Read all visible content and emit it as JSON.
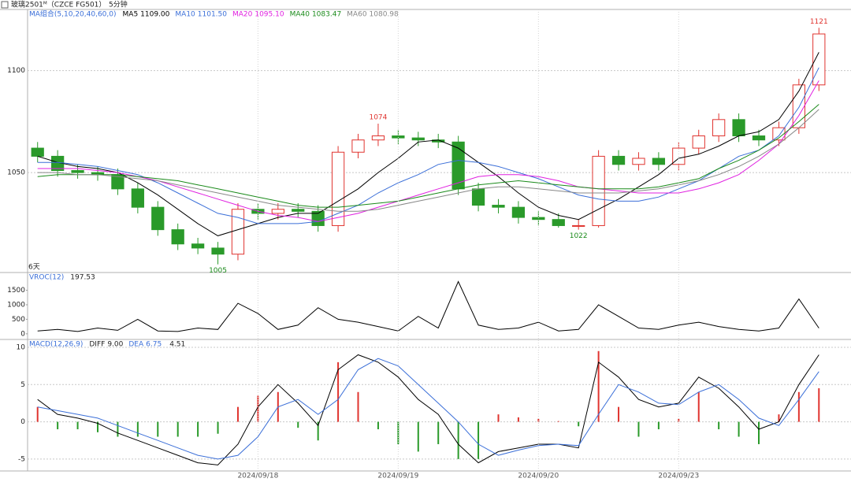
{
  "header": {
    "symbol": "玻璃2501ᴹ（CZCE FG501）",
    "period": "5分钟"
  },
  "chart_data": [
    {
      "type": "candlestick",
      "legend_title": "MA组合(5,10,20,40,60,0)",
      "period_note": "6天",
      "ylim": [
        1001,
        1130
      ],
      "yticks": [
        1050,
        1100
      ],
      "grid": true,
      "up_color": "#e0342f",
      "down_color": "#2a9a2a",
      "labeled_highs": [
        17,
        39
      ],
      "labeled_lows": [
        9,
        27
      ],
      "open": [
        1062,
        1058,
        1051,
        1050,
        1049,
        1042,
        1033,
        1022,
        1015,
        1013,
        1010,
        1032,
        1030,
        1032,
        1031,
        1024,
        1060,
        1066,
        1068,
        1067,
        1066,
        1065,
        1042,
        1034,
        1033,
        1028,
        1027,
        1024,
        1024,
        1058,
        1054,
        1057,
        1054,
        1062,
        1068,
        1076,
        1068,
        1066,
        1072,
        1093
      ],
      "high": [
        1065,
        1061,
        1054,
        1053,
        1052,
        1045,
        1036,
        1025,
        1018,
        1016,
        1035,
        1035,
        1035,
        1035,
        1034,
        1063,
        1069,
        1074,
        1071,
        1070,
        1069,
        1068,
        1045,
        1037,
        1036,
        1031,
        1030,
        1027,
        1061,
        1061,
        1060,
        1060,
        1065,
        1071,
        1079,
        1079,
        1071,
        1075,
        1096,
        1121
      ],
      "low": [
        1055,
        1048,
        1047,
        1046,
        1039,
        1030,
        1019,
        1012,
        1010,
        1005,
        1007,
        1027,
        1027,
        1028,
        1021,
        1021,
        1057,
        1063,
        1064,
        1063,
        1062,
        1039,
        1031,
        1030,
        1025,
        1024,
        1023,
        1022,
        1023,
        1051,
        1051,
        1051,
        1051,
        1059,
        1065,
        1065,
        1063,
        1063,
        1069,
        1090
      ],
      "close": [
        1058,
        1051,
        1050,
        1049,
        1042,
        1033,
        1022,
        1015,
        1013,
        1010,
        1032,
        1030,
        1032,
        1031,
        1024,
        1060,
        1066,
        1068,
        1067,
        1066,
        1065,
        1042,
        1034,
        1033,
        1028,
        1027,
        1024,
        1024,
        1058,
        1054,
        1057,
        1054,
        1062,
        1068,
        1076,
        1068,
        1066,
        1072,
        1093,
        1118
      ],
      "series": [
        {
          "name": "MA5",
          "legend_value": "1109.00",
          "color": "#000000",
          "values": [
            1058,
            1055,
            1053,
            1052,
            1050,
            1045,
            1039,
            1032,
            1025,
            1019,
            1022,
            1025,
            1028,
            1030,
            1030,
            1036,
            1042,
            1050,
            1057,
            1065,
            1066,
            1062,
            1055,
            1048,
            1040,
            1033,
            1029,
            1027,
            1032,
            1037,
            1043,
            1049,
            1057,
            1059,
            1063,
            1068,
            1070,
            1076,
            1090,
            1109
          ]
        },
        {
          "name": "MA10",
          "legend_value": "1101.50",
          "color": "#3b6fd8",
          "values": [
            1055,
            1055,
            1054,
            1053,
            1051,
            1049,
            1045,
            1040,
            1035,
            1030,
            1028,
            1025,
            1025,
            1025,
            1026,
            1030,
            1034,
            1040,
            1045,
            1049,
            1054,
            1056,
            1055,
            1053,
            1050,
            1047,
            1043,
            1039,
            1037,
            1036,
            1036,
            1038,
            1042,
            1046,
            1052,
            1058,
            1061,
            1068,
            1082,
            1101.5
          ]
        },
        {
          "name": "MA20",
          "legend_value": "1095.10",
          "color": "#e020e0",
          "values": [
            1052,
            1052,
            1052,
            1051,
            1050,
            1048,
            1046,
            1043,
            1040,
            1037,
            1034,
            1031,
            1029,
            1028,
            1026,
            1028,
            1030,
            1033,
            1036,
            1039,
            1042,
            1045,
            1048,
            1049,
            1049,
            1048,
            1046,
            1043,
            1042,
            1041,
            1040,
            1040,
            1040,
            1042,
            1045,
            1049,
            1056,
            1064,
            1078,
            1095.1
          ]
        },
        {
          "name": "MA40",
          "legend_value": "1083.47",
          "color": "#1a8a1a",
          "values": [
            1048,
            1049,
            1049,
            1049,
            1049,
            1048,
            1047,
            1046,
            1044,
            1042,
            1040,
            1038,
            1036,
            1034,
            1033,
            1033,
            1034,
            1035,
            1036,
            1038,
            1040,
            1042,
            1044,
            1045,
            1046,
            1045,
            1044,
            1043,
            1042,
            1042,
            1042,
            1043,
            1045,
            1047,
            1052,
            1056,
            1061,
            1067,
            1075,
            1083.47
          ]
        },
        {
          "name": "MA60",
          "legend_value": "1080.98",
          "color": "#888888",
          "values": [
            1050,
            1050,
            1049,
            1049,
            1048,
            1047,
            1046,
            1044,
            1042,
            1040,
            1038,
            1036,
            1034,
            1033,
            1032,
            1031,
            1031,
            1032,
            1034,
            1036,
            1038,
            1040,
            1042,
            1043,
            1043,
            1042,
            1041,
            1040,
            1040,
            1040,
            1041,
            1042,
            1044,
            1046,
            1049,
            1053,
            1058,
            1064,
            1072,
            1080.98
          ]
        }
      ]
    },
    {
      "type": "line",
      "legend_title": "VROC(12)",
      "ylim": [
        -194,
        2111
      ],
      "yticks": [
        0,
        500,
        1000,
        1500
      ],
      "series": [
        {
          "name": "VROC",
          "color": "#000000",
          "values": [
            100,
            150,
            80,
            200,
            120,
            500,
            100,
            80,
            200,
            150,
            1050,
            700,
            150,
            300,
            900,
            500,
            400,
            250,
            100,
            600,
            200,
            1800,
            300,
            150,
            200,
            400,
            100,
            150,
            1000,
            600,
            200,
            150,
            300,
            400,
            250,
            150,
            100,
            200,
            1200,
            197.53
          ]
        }
      ]
    },
    {
      "type": "macd",
      "legend_title": "MACD(12,26,9)",
      "ylim": [
        -6.6,
        11.06
      ],
      "yticks": [
        -5,
        0,
        5,
        10
      ],
      "grid": true,
      "categories": [
        null,
        null,
        null,
        null,
        null,
        null,
        null,
        null,
        null,
        null,
        null,
        "2024/09/18",
        null,
        null,
        null,
        null,
        null,
        null,
        "2024/09/19",
        null,
        null,
        null,
        null,
        null,
        null,
        "2024/09/20",
        null,
        null,
        null,
        null,
        null,
        null,
        "2024/09/23",
        null,
        null,
        null,
        null,
        null,
        null,
        null
      ],
      "up_color": "#e0342f",
      "down_color": "#2a9a2a",
      "series": [
        {
          "name": "DIFF",
          "legend_value": "9.00",
          "color": "#000000",
          "values": [
            3.0,
            1.0,
            0.5,
            -0.2,
            -1.5,
            -2.5,
            -3.5,
            -4.5,
            -5.5,
            -5.8,
            -3.0,
            2.0,
            5.0,
            2.5,
            -0.5,
            7.0,
            9.0,
            8.0,
            6.0,
            3.0,
            1.0,
            -3.0,
            -5.5,
            -4.0,
            -3.5,
            -3.0,
            -3.0,
            -3.5,
            8.0,
            6.0,
            3.0,
            2.0,
            2.5,
            6.0,
            4.5,
            2.0,
            -1.0,
            0.0,
            5.0,
            9.0
          ]
        },
        {
          "name": "DEA",
          "color": "#3b6fd8",
          "values": [
            2.0,
            1.5,
            1.0,
            0.5,
            -0.5,
            -1.5,
            -2.5,
            -3.5,
            -4.5,
            -5.0,
            -4.5,
            -2.0,
            2.0,
            3.0,
            1.0,
            3.0,
            7.0,
            8.5,
            7.5,
            5.0,
            2.5,
            0.0,
            -3.0,
            -4.5,
            -3.8,
            -3.2,
            -3.0,
            -3.2,
            1.0,
            5.0,
            4.0,
            2.5,
            2.3,
            4.0,
            5.0,
            3.0,
            0.5,
            -0.5,
            3.0,
            6.75
          ]
        }
      ],
      "histogram": [
        2.0,
        -1.0,
        -1.0,
        -1.4,
        -2.0,
        -2.0,
        -2.0,
        -2.0,
        -2.0,
        -1.6,
        2.0,
        3.5,
        4.0,
        -0.8,
        -2.5,
        8.0,
        4.0,
        -1.0,
        -3.0,
        -4.0,
        -3.0,
        -5.0,
        -5.0,
        1.0,
        0.6,
        0.4,
        0.1,
        -0.6,
        9.5,
        2.0,
        -2.0,
        -1.0,
        0.4,
        4.0,
        -1.0,
        -2.0,
        -3.0,
        1.0,
        4.0,
        4.51
      ]
    }
  ]
}
